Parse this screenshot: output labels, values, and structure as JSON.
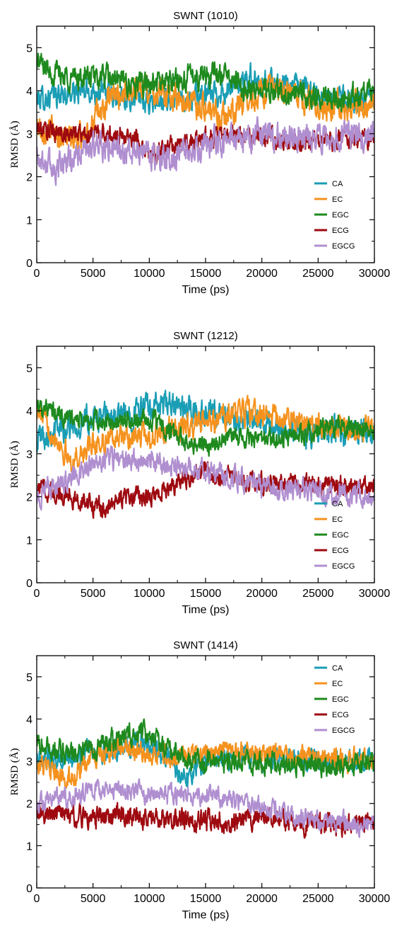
{
  "chart_data": [
    {
      "type": "line",
      "title": "SWNT (1010)",
      "xlabel": "Time (ps)",
      "ylabel": "RMSD (Å)",
      "xlim": [
        0,
        30000
      ],
      "ylim": [
        0,
        5.5
      ],
      "xticks": [
        0,
        5000,
        10000,
        15000,
        20000,
        25000,
        30000
      ],
      "xtick_labels": [
        "0",
        "5000",
        "10000",
        "15000",
        "20000",
        "25000",
        "30000"
      ],
      "yticks": [
        0,
        1,
        2,
        3,
        4,
        5
      ],
      "ytick_labels": [
        "0",
        "1",
        "2",
        "3",
        "4",
        "5"
      ],
      "legend_position": "bottom-right",
      "grid": false,
      "series": [
        {
          "name": "CA",
          "color": "#1a9eb5",
          "noise": 0.22,
          "x": [
            0,
            2000,
            5000,
            8000,
            10000,
            13000,
            15000,
            17000,
            19000,
            20000,
            22000,
            25000,
            27000,
            30000
          ],
          "values": [
            3.8,
            3.9,
            4.0,
            3.9,
            3.7,
            3.8,
            3.9,
            4.0,
            4.3,
            4.2,
            4.2,
            3.9,
            3.8,
            3.8
          ]
        },
        {
          "name": "EC",
          "color": "#f5921e",
          "noise": 0.25,
          "x": [
            0,
            2000,
            3500,
            5000,
            7000,
            9000,
            10000,
            12000,
            15000,
            16500,
            18000,
            20000,
            23000,
            25000,
            30000
          ],
          "values": [
            3.2,
            3.0,
            2.8,
            3.3,
            3.9,
            4.1,
            4.0,
            3.9,
            3.6,
            3.4,
            3.7,
            4.0,
            3.9,
            3.7,
            3.6
          ]
        },
        {
          "name": "EGC",
          "color": "#1e8a1e",
          "noise": 0.22,
          "x": [
            0,
            1000,
            3000,
            6000,
            9000,
            12000,
            15000,
            17000,
            18000,
            20000,
            23000,
            25000,
            30000
          ],
          "values": [
            4.7,
            4.5,
            4.3,
            4.3,
            4.1,
            4.2,
            4.4,
            4.4,
            4.1,
            4.0,
            3.9,
            3.8,
            3.9
          ]
        },
        {
          "name": "ECG",
          "color": "#9e0a10",
          "noise": 0.18,
          "x": [
            0,
            3000,
            6000,
            9000,
            10000,
            12000,
            15000,
            17000,
            20000,
            25000,
            30000
          ],
          "values": [
            3.1,
            3.0,
            3.0,
            2.9,
            2.5,
            2.7,
            2.9,
            3.0,
            2.9,
            2.8,
            2.9
          ]
        },
        {
          "name": "EGCG",
          "color": "#b08fd0",
          "noise": 0.25,
          "x": [
            0,
            1500,
            3000,
            5000,
            7000,
            10000,
            12000,
            15000,
            18000,
            20000,
            23000,
            25000,
            30000
          ],
          "values": [
            2.5,
            2.2,
            2.4,
            2.7,
            2.6,
            2.5,
            2.4,
            2.7,
            2.9,
            3.0,
            2.9,
            2.9,
            3.0
          ]
        }
      ]
    },
    {
      "type": "line",
      "title": "SWNT (1212)",
      "xlabel": "Time (ps)",
      "ylabel": "RMSD (Å)",
      "xlim": [
        0,
        30000
      ],
      "ylim": [
        0,
        5.5
      ],
      "xticks": [
        0,
        5000,
        10000,
        15000,
        20000,
        25000,
        30000
      ],
      "xtick_labels": [
        "0",
        "5000",
        "10000",
        "15000",
        "20000",
        "25000",
        "30000"
      ],
      "yticks": [
        0,
        1,
        2,
        3,
        4,
        5
      ],
      "ytick_labels": [
        "0",
        "1",
        "2",
        "3",
        "4",
        "5"
      ],
      "legend_position": "bottom-right",
      "grid": false,
      "series": [
        {
          "name": "CA",
          "color": "#1a9eb5",
          "noise": 0.25,
          "x": [
            0,
            2000,
            5000,
            8000,
            10000,
            12000,
            15000,
            18000,
            20000,
            25000,
            30000
          ],
          "values": [
            3.4,
            3.6,
            3.8,
            3.9,
            4.1,
            4.1,
            3.9,
            3.8,
            3.7,
            3.5,
            3.5
          ]
        },
        {
          "name": "EC",
          "color": "#f5921e",
          "noise": 0.22,
          "x": [
            0,
            1500,
            3000,
            5000,
            7000,
            10000,
            13000,
            15000,
            17000,
            19000,
            22000,
            25000,
            30000
          ],
          "values": [
            4.0,
            3.5,
            2.8,
            3.2,
            3.4,
            3.4,
            3.6,
            3.7,
            3.9,
            4.0,
            3.8,
            3.6,
            3.6
          ]
        },
        {
          "name": "EGC",
          "color": "#1e8a1e",
          "noise": 0.18,
          "x": [
            0,
            1000,
            3000,
            6000,
            10000,
            13000,
            15000,
            17000,
            20000,
            23000,
            26000,
            28000,
            30000
          ],
          "values": [
            4.2,
            4.0,
            3.8,
            3.7,
            3.8,
            3.3,
            3.2,
            3.4,
            3.3,
            3.4,
            3.7,
            3.6,
            3.6
          ]
        },
        {
          "name": "ECG",
          "color": "#9e0a10",
          "noise": 0.18,
          "x": [
            0,
            2000,
            5000,
            6000,
            8000,
            10000,
            13000,
            15000,
            18000,
            20000,
            25000,
            30000
          ],
          "values": [
            2.2,
            2.1,
            1.8,
            1.7,
            2.0,
            2.0,
            2.4,
            2.6,
            2.4,
            2.3,
            2.3,
            2.2
          ]
        },
        {
          "name": "EGCG",
          "color": "#b08fd0",
          "noise": 0.2,
          "x": [
            0,
            2000,
            5000,
            7000,
            10000,
            13000,
            15000,
            18000,
            20000,
            25000,
            30000
          ],
          "values": [
            2.0,
            2.3,
            2.8,
            2.9,
            2.8,
            2.7,
            2.6,
            2.4,
            2.2,
            2.1,
            2.0
          ]
        }
      ]
    },
    {
      "type": "line",
      "title": "SWNT (1414)",
      "xlabel": "Time (ps)",
      "ylabel": "RMSD (Å)",
      "xlim": [
        0,
        30000
      ],
      "ylim": [
        0,
        5.5
      ],
      "xticks": [
        0,
        5000,
        10000,
        15000,
        20000,
        25000,
        30000
      ],
      "xtick_labels": [
        "0",
        "5000",
        "10000",
        "15000",
        "20000",
        "25000",
        "30000"
      ],
      "yticks": [
        0,
        1,
        2,
        3,
        4,
        5
      ],
      "ytick_labels": [
        "0",
        "1",
        "2",
        "3",
        "4",
        "5"
      ],
      "legend_position": "top-right",
      "grid": false,
      "series": [
        {
          "name": "CA",
          "color": "#1a9eb5",
          "noise": 0.2,
          "x": [
            0,
            2000,
            5000,
            8000,
            10000,
            12000,
            13000,
            15000,
            18000,
            20000,
            25000,
            30000
          ],
          "values": [
            3.1,
            3.0,
            3.2,
            3.4,
            3.4,
            3.0,
            2.6,
            3.0,
            3.1,
            3.1,
            3.0,
            3.0
          ]
        },
        {
          "name": "EC",
          "color": "#f5921e",
          "noise": 0.2,
          "x": [
            0,
            2000,
            3500,
            5000,
            7000,
            10000,
            12000,
            15000,
            18000,
            20000,
            25000,
            30000
          ],
          "values": [
            3.0,
            2.6,
            2.7,
            3.1,
            3.3,
            3.2,
            3.1,
            3.2,
            3.2,
            3.2,
            3.1,
            3.0
          ]
        },
        {
          "name": "EGC",
          "color": "#1e8a1e",
          "noise": 0.2,
          "x": [
            0,
            1000,
            3000,
            6000,
            9000,
            10000,
            12000,
            15000,
            20000,
            25000,
            30000
          ],
          "values": [
            3.4,
            3.3,
            3.2,
            3.4,
            3.7,
            3.7,
            3.2,
            3.0,
            3.0,
            2.9,
            2.9
          ]
        },
        {
          "name": "ECG",
          "color": "#9e0a10",
          "noise": 0.2,
          "x": [
            0,
            3000,
            5000,
            7000,
            10000,
            15000,
            20000,
            25000,
            30000
          ],
          "values": [
            1.8,
            1.7,
            1.7,
            1.8,
            1.6,
            1.6,
            1.6,
            1.5,
            1.5
          ]
        },
        {
          "name": "EGCG",
          "color": "#b08fd0",
          "noise": 0.18,
          "x": [
            0,
            3000,
            5000,
            7000,
            10000,
            13000,
            15000,
            17000,
            20000,
            23000,
            25000,
            30000
          ],
          "values": [
            2.0,
            2.2,
            2.3,
            2.3,
            2.2,
            2.2,
            2.2,
            2.1,
            1.9,
            1.7,
            1.6,
            1.5
          ]
        }
      ]
    }
  ]
}
